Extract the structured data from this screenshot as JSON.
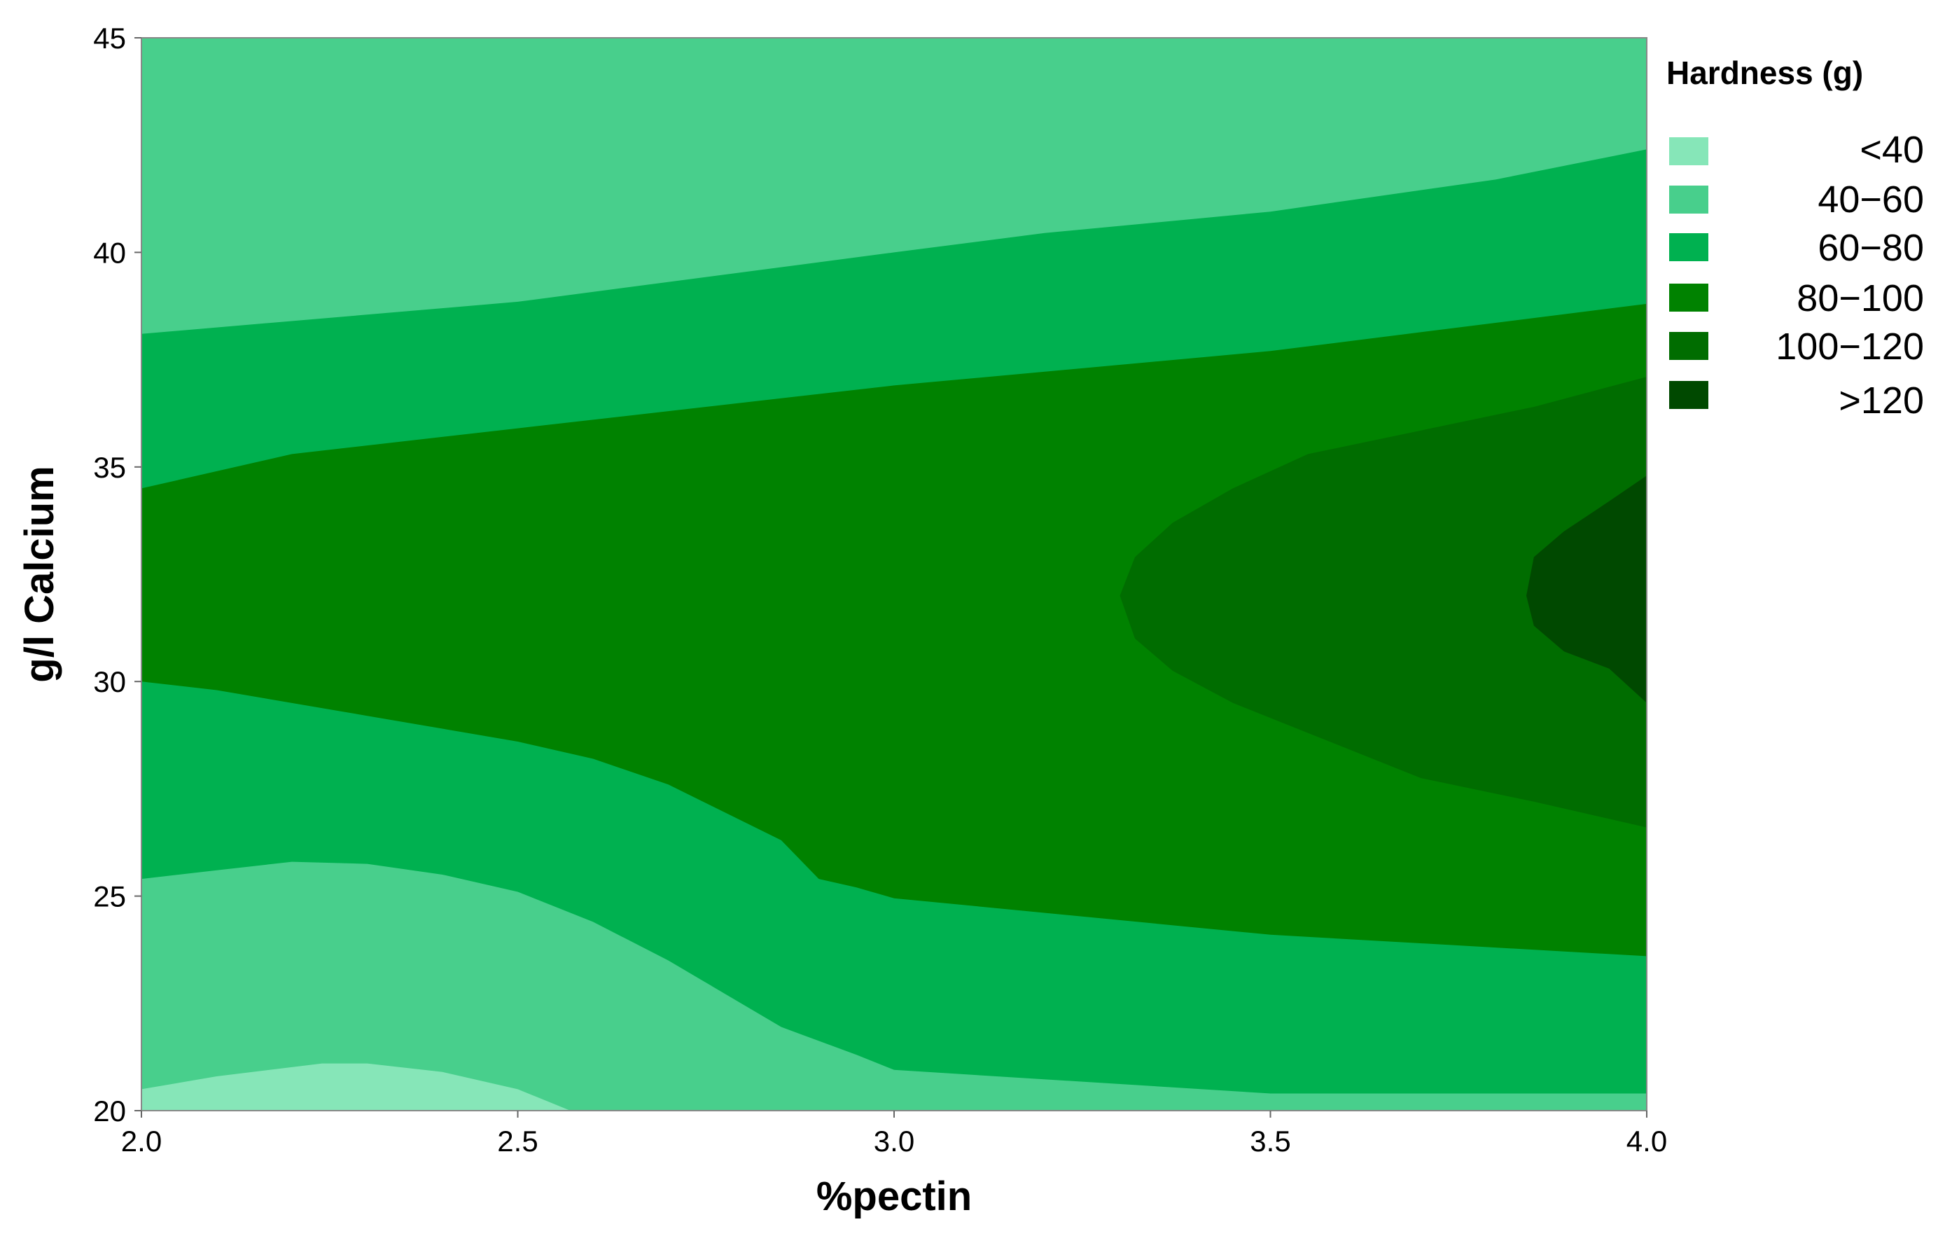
{
  "chart_data": {
    "type": "contour",
    "xlabel": "%pectin",
    "ylabel": "g/l Calcium",
    "xlim": [
      2.0,
      4.0
    ],
    "ylim": [
      20,
      45
    ],
    "x_ticks": [
      "2.0",
      "2.5",
      "3.0",
      "3.5",
      "4.0"
    ],
    "y_ticks": [
      "20",
      "25",
      "30",
      "35",
      "40",
      "45"
    ],
    "x_tick_values": [
      2.0,
      2.5,
      3.0,
      3.5,
      4.0
    ],
    "y_tick_values": [
      20,
      25,
      30,
      35,
      40,
      45
    ],
    "legend": {
      "title": "Hardness (g)",
      "placement": "right",
      "entries": [
        {
          "label": "<40",
          "color": "#86e6b8"
        },
        {
          "label": "40−60",
          "color": "#48cf8c"
        },
        {
          "label": "60−80",
          "color": "#00b150"
        },
        {
          "label": "80−100",
          "color": "#008200"
        },
        {
          "label": "100−120",
          "color": "#006d00"
        },
        {
          "label": ">120",
          "color": "#004900"
        }
      ]
    },
    "regions": [
      {
        "level": "40−60",
        "color": "#48cf8c",
        "points": [
          [
            2.0,
            20
          ],
          [
            2.0,
            45
          ],
          [
            4.0,
            45
          ],
          [
            4.0,
            20
          ]
        ]
      },
      {
        "level": "60−80",
        "color": "#00b150",
        "points": [
          [
            2.0,
            25.4
          ],
          [
            2.0,
            38.1
          ],
          [
            2.5,
            38.85
          ],
          [
            3.0,
            40.0
          ],
          [
            3.2,
            40.45
          ],
          [
            3.5,
            40.95
          ],
          [
            3.8,
            41.7
          ],
          [
            4.0,
            42.4
          ],
          [
            4.0,
            20.4
          ],
          [
            3.5,
            20.4
          ],
          [
            3.0,
            20.95
          ],
          [
            2.95,
            21.3
          ],
          [
            2.85,
            21.95
          ],
          [
            2.7,
            23.5
          ],
          [
            2.6,
            24.4
          ],
          [
            2.5,
            25.1
          ],
          [
            2.4,
            25.5
          ],
          [
            2.3,
            25.75
          ],
          [
            2.2,
            25.8
          ],
          [
            2.1,
            25.6
          ]
        ]
      },
      {
        "level": "80−100",
        "color": "#008200",
        "points": [
          [
            2.0,
            30.0
          ],
          [
            2.0,
            34.5
          ],
          [
            2.2,
            35.3
          ],
          [
            2.5,
            35.9
          ],
          [
            3.0,
            36.9
          ],
          [
            3.5,
            37.7
          ],
          [
            4.0,
            38.8
          ],
          [
            4.0,
            23.6
          ],
          [
            3.5,
            24.1
          ],
          [
            3.0,
            24.95
          ],
          [
            2.95,
            25.2
          ],
          [
            2.9,
            25.4
          ],
          [
            2.85,
            26.3
          ],
          [
            2.7,
            27.6
          ],
          [
            2.6,
            28.2
          ],
          [
            2.5,
            28.6
          ],
          [
            2.3,
            29.2
          ],
          [
            2.1,
            29.8
          ]
        ]
      },
      {
        "level": "100−120",
        "color": "#006d00",
        "points": [
          [
            3.3,
            32.0
          ],
          [
            3.32,
            32.9
          ],
          [
            3.37,
            33.7
          ],
          [
            3.45,
            34.5
          ],
          [
            3.55,
            35.3
          ],
          [
            3.7,
            35.85
          ],
          [
            3.85,
            36.4
          ],
          [
            4.0,
            37.1
          ],
          [
            4.0,
            26.6
          ],
          [
            3.85,
            27.2
          ],
          [
            3.7,
            27.75
          ],
          [
            3.55,
            28.8
          ],
          [
            3.45,
            29.5
          ],
          [
            3.37,
            30.25
          ],
          [
            3.32,
            31.0
          ]
        ]
      },
      {
        "level": ">120",
        "color": "#004900",
        "points": [
          [
            3.84,
            32.0
          ],
          [
            3.85,
            32.9
          ],
          [
            3.89,
            33.5
          ],
          [
            3.95,
            34.2
          ],
          [
            4.0,
            34.8
          ],
          [
            4.0,
            29.5
          ],
          [
            3.95,
            30.3
          ],
          [
            3.89,
            30.7
          ],
          [
            3.85,
            31.3
          ]
        ]
      },
      {
        "level": "<40",
        "color": "#86e6b8",
        "points": [
          [
            2.0,
            20
          ],
          [
            2.0,
            20.5
          ],
          [
            2.1,
            20.8
          ],
          [
            2.24,
            21.1
          ],
          [
            2.3,
            21.1
          ],
          [
            2.4,
            20.9
          ],
          [
            2.5,
            20.5
          ],
          [
            2.57,
            20
          ]
        ]
      }
    ]
  }
}
